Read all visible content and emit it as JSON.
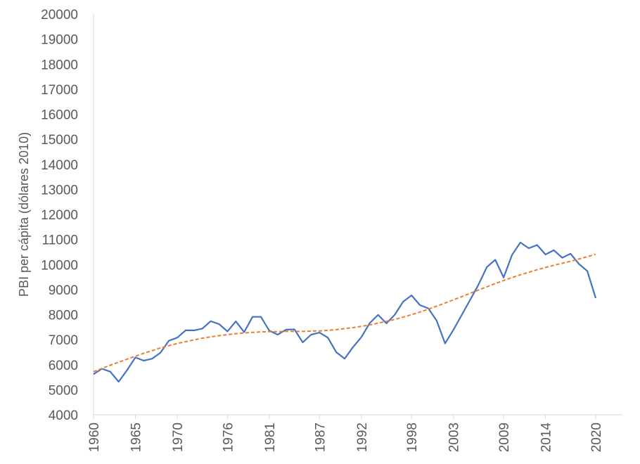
{
  "chart_data": {
    "type": "line",
    "ylabel": "PBI per cápita (dólares 2010)",
    "ylim": [
      4000,
      20000
    ],
    "yticks": [
      4000,
      5000,
      6000,
      7000,
      8000,
      9000,
      10000,
      11000,
      12000,
      13000,
      14000,
      15000,
      16000,
      17000,
      18000,
      19000,
      20000
    ],
    "xlim": [
      1960,
      2020
    ],
    "xticks": [
      1960,
      1965,
      1970,
      1976,
      1981,
      1987,
      1992,
      1998,
      2003,
      2009,
      2014,
      2020
    ],
    "grid": false,
    "legend": "none",
    "x": [
      1960,
      1961,
      1962,
      1963,
      1964,
      1965,
      1966,
      1967,
      1968,
      1969,
      1970,
      1971,
      1972,
      1973,
      1974,
      1975,
      1976,
      1977,
      1978,
      1979,
      1980,
      1981,
      1982,
      1983,
      1984,
      1985,
      1986,
      1987,
      1988,
      1989,
      1990,
      1991,
      1992,
      1993,
      1994,
      1995,
      1996,
      1997,
      1998,
      1999,
      2000,
      2001,
      2002,
      2003,
      2004,
      2005,
      2006,
      2007,
      2008,
      2009,
      2010,
      2011,
      2012,
      2013,
      2014,
      2015,
      2016,
      2017,
      2018,
      2019,
      2020
    ],
    "series": [
      {
        "color": "#4472c4",
        "style": "solid",
        "values": [
          5620,
          5840,
          5720,
          5320,
          5780,
          6290,
          6160,
          6240,
          6480,
          6960,
          7080,
          7370,
          7370,
          7440,
          7740,
          7620,
          7330,
          7730,
          7300,
          7910,
          7910,
          7360,
          7200,
          7400,
          7410,
          6890,
          7200,
          7280,
          7080,
          6500,
          6240,
          6700,
          7100,
          7660,
          7990,
          7650,
          8000,
          8520,
          8770,
          8380,
          8250,
          7760,
          6850,
          7390,
          7990,
          8590,
          9200,
          9900,
          10190,
          9480,
          10380,
          10880,
          10650,
          10780,
          10400,
          10570,
          10270,
          10430,
          10020,
          9740,
          8660
        ]
      },
      {
        "color": "#ed7d31",
        "style": "dashed",
        "values": [
          5720,
          5850,
          5980,
          6100,
          6220,
          6340,
          6460,
          6560,
          6670,
          6760,
          6850,
          6920,
          6990,
          7060,
          7110,
          7160,
          7200,
          7240,
          7270,
          7290,
          7310,
          7320,
          7320,
          7330,
          7330,
          7330,
          7340,
          7350,
          7370,
          7400,
          7440,
          7480,
          7530,
          7590,
          7660,
          7730,
          7810,
          7900,
          8000,
          8100,
          8220,
          8340,
          8460,
          8590,
          8720,
          8850,
          8980,
          9110,
          9240,
          9360,
          9480,
          9590,
          9690,
          9790,
          9880,
          9970,
          10050,
          10130,
          10220,
          10310,
          10410
        ]
      }
    ]
  }
}
